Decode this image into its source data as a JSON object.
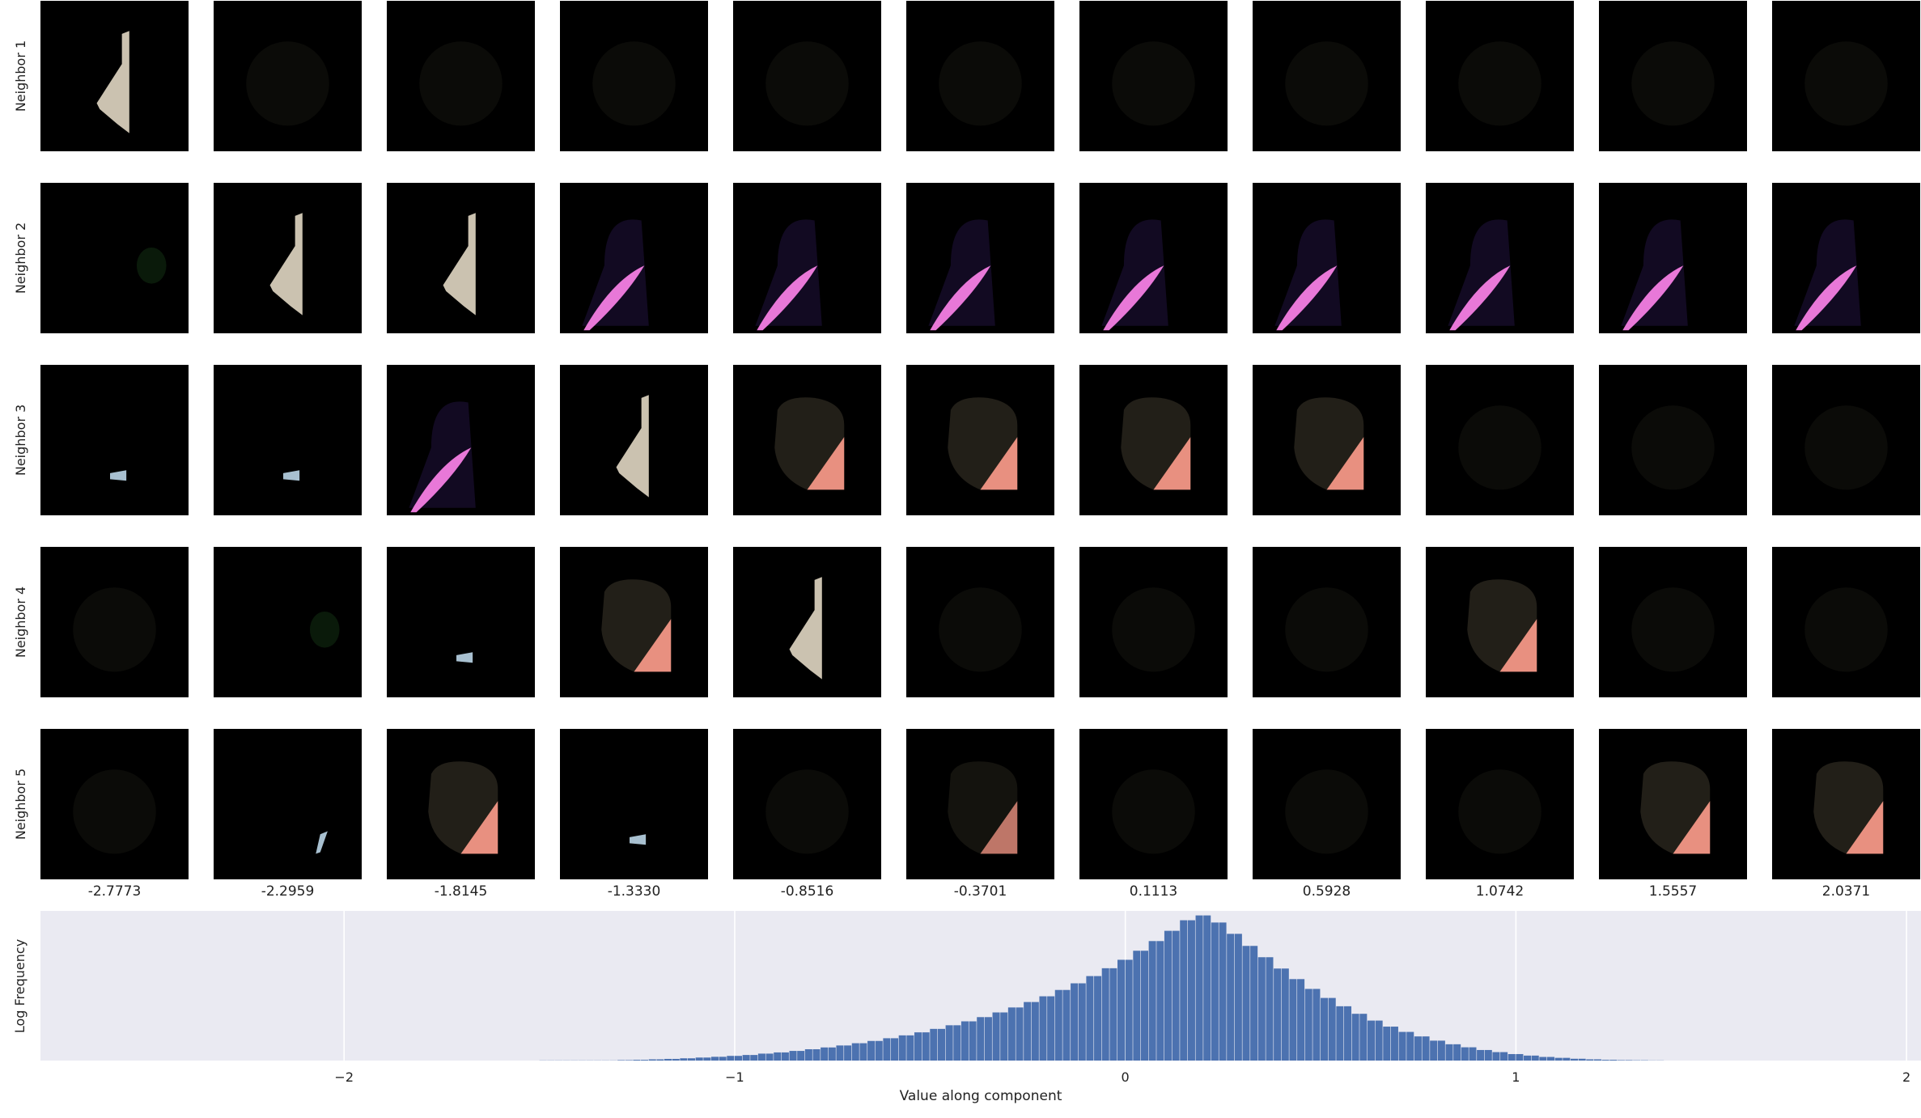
{
  "figure": {
    "row_labels": [
      "Neighbor 1",
      "Neighbor 2",
      "Neighbor 3",
      "Neighbor 4",
      "Neighbor 5"
    ],
    "column_values": [
      "-2.7773",
      "-2.2959",
      "-1.8145",
      "-1.3330",
      "-0.8516",
      "-0.3701",
      "0.1113",
      "0.5928",
      "1.0742",
      "1.5557",
      "2.0371"
    ],
    "thumbnails": [
      [
        "leaf",
        "faint",
        "faint",
        "faint",
        "faint",
        "faint",
        "faint",
        "faint",
        "faint",
        "faint",
        "faint"
      ],
      [
        "green-faint",
        "leaf",
        "leaf",
        "petal",
        "petal",
        "petal",
        "petal",
        "petal",
        "petal",
        "petal",
        "petal"
      ],
      [
        "chip",
        "chip",
        "petal",
        "leaf",
        "blob",
        "blob",
        "blob",
        "blob",
        "faint",
        "faint",
        "faint"
      ],
      [
        "faint",
        "green-faint",
        "chip",
        "blob",
        "leaf",
        "faint",
        "faint",
        "faint",
        "blob",
        "faint",
        "faint"
      ],
      [
        "faint",
        "sliver",
        "blob",
        "chip",
        "faint",
        "blob-dim",
        "faint",
        "faint",
        "faint",
        "blob",
        "blob"
      ]
    ]
  },
  "chart_data": {
    "type": "bar",
    "xlabel": "Value along component",
    "ylabel": "Log Frequency",
    "xlim": [
      -2.7773,
      2.0371
    ],
    "xticks": [
      -2,
      -1,
      0,
      1,
      2
    ],
    "xtick_labels": [
      "−2",
      "−1",
      "0",
      "1",
      "2"
    ],
    "bin_start": -1.5,
    "bin_width": 0.02,
    "values": [
      0.1,
      0.1,
      0.1,
      0.1,
      0.1,
      0.1,
      0.1,
      0.1,
      0.1,
      0.1,
      0.3,
      0.3,
      0.5,
      0.5,
      0.8,
      0.8,
      1.1,
      1.1,
      1.5,
      1.5,
      2.0,
      2.0,
      2.5,
      2.5,
      3.1,
      3.1,
      3.7,
      3.7,
      4.6,
      4.6,
      5.4,
      5.4,
      6.4,
      6.4,
      7.5,
      7.5,
      8.7,
      8.7,
      10.0,
      10.0,
      11.5,
      11.5,
      13.0,
      13.0,
      14.8,
      14.8,
      16.7,
      16.7,
      18.7,
      18.7,
      21.0,
      21.0,
      23.4,
      23.4,
      26.0,
      26.0,
      28.8,
      28.8,
      31.9,
      31.9,
      35.2,
      35.2,
      38.8,
      38.8,
      42.6,
      42.6,
      46.8,
      46.8,
      51.2,
      51.2,
      56.0,
      56.0,
      61.2,
      61.2,
      66.8,
      66.8,
      72.8,
      72.8,
      79.2,
      79.2,
      86.0,
      86.0,
      93.0,
      93.0,
      96.2,
      96.2,
      91.5,
      91.5,
      84.0,
      84.0,
      76.0,
      76.0,
      68.5,
      68.5,
      61.0,
      61.0,
      54.0,
      54.0,
      47.5,
      47.5,
      41.5,
      41.5,
      36.0,
      36.0,
      31.0,
      31.0,
      26.5,
      26.5,
      22.5,
      22.5,
      19.0,
      19.0,
      16.0,
      16.0,
      13.2,
      13.2,
      10.8,
      10.8,
      8.8,
      8.8,
      7.0,
      7.0,
      5.6,
      5.6,
      4.3,
      4.3,
      3.3,
      3.3,
      2.4,
      2.4,
      1.8,
      1.8,
      1.2,
      1.2,
      0.8,
      0.8,
      0.5,
      0.5,
      0.3,
      0.3,
      0.2,
      0.2,
      0.1,
      0.1
    ],
    "grid": true,
    "colors": {
      "bar": "#4c72b0",
      "plot_background": "#eaeaf2",
      "grid": "#ffffff",
      "thumbnail_background": "#000000",
      "leaf": "#cbc2b0",
      "petal": "#e878d8",
      "blob": "#221f18",
      "blob_pink": "#e89080",
      "chip": "#a8c0d0"
    }
  }
}
